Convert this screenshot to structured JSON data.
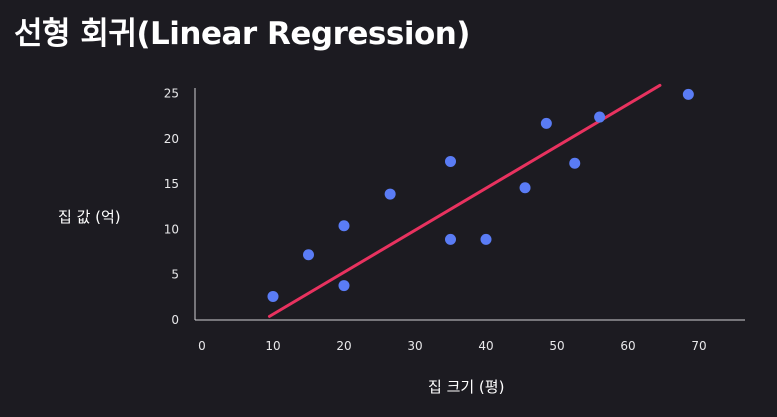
{
  "title": "선형 회귀(Linear Regression)",
  "colors": {
    "background": "#1c1b21",
    "point": "#5a7cf5",
    "line": "#e8325f",
    "axis": "#cfcfd4",
    "text": "#ffffff"
  },
  "chart_data": {
    "type": "scatter",
    "title": "",
    "xlabel": "집 크기 (평)",
    "ylabel": "집 값 (억)",
    "xlim": [
      0,
      76
    ],
    "ylim": [
      0,
      25
    ],
    "xticks": [
      0,
      10,
      20,
      30,
      40,
      50,
      60,
      70
    ],
    "yticks": [
      0,
      5,
      10,
      15,
      20,
      25
    ],
    "grid": false,
    "legend": "none",
    "points": [
      {
        "x": 10,
        "y": 2.6
      },
      {
        "x": 15,
        "y": 7.2
      },
      {
        "x": 20,
        "y": 3.8
      },
      {
        "x": 20,
        "y": 10.4
      },
      {
        "x": 26.5,
        "y": 13.9
      },
      {
        "x": 35,
        "y": 17.5
      },
      {
        "x": 35,
        "y": 8.9
      },
      {
        "x": 40,
        "y": 8.9
      },
      {
        "x": 45.5,
        "y": 14.6
      },
      {
        "x": 48.5,
        "y": 21.7
      },
      {
        "x": 52.5,
        "y": 17.3
      },
      {
        "x": 56,
        "y": 22.4
      },
      {
        "x": 68.5,
        "y": 24.9
      }
    ],
    "regression_line": {
      "x": [
        9.5,
        64.5
      ],
      "y": [
        0.4,
        25.9
      ]
    }
  }
}
